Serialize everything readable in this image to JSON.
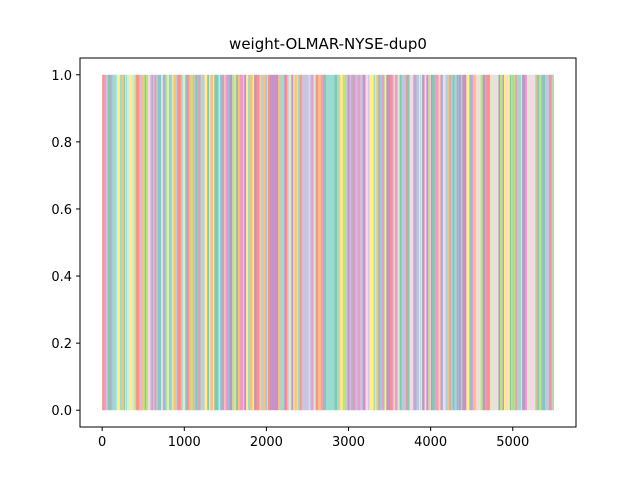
{
  "chart_data": {
    "type": "area",
    "title": "weight-OLMAR-NYSE-dup0",
    "xlabel": "",
    "ylabel": "",
    "xlim": [
      -270,
      5770
    ],
    "ylim": [
      -0.05,
      1.05
    ],
    "x_range": [
      0,
      5500
    ],
    "x_ticks": [
      0,
      1000,
      2000,
      3000,
      4000,
      5000
    ],
    "x_tick_labels": [
      "0",
      "1000",
      "2000",
      "3000",
      "4000",
      "5000"
    ],
    "y_ticks": [
      0.0,
      0.2,
      0.4,
      0.6,
      0.8,
      1.0
    ],
    "y_tick_labels": [
      "0.0",
      "0.2",
      "0.4",
      "0.6",
      "0.8",
      "1.0"
    ],
    "stacked_total": 1.0,
    "grid": false,
    "legend": "none",
    "note_series": "Stacked portfolio weights over time; at each time step the weight is concentrated in a single asset, producing full-height vertical colored bands.",
    "series_colors": [
      "#8dd3c7",
      "#bc80bd",
      "#80b1d3",
      "#fb8072",
      "#b3de69",
      "#fdb462",
      "#bebada",
      "#fccde5",
      "#ccebc5",
      "#ffed6f",
      "#66c2a5",
      "#e78ac3"
    ]
  }
}
